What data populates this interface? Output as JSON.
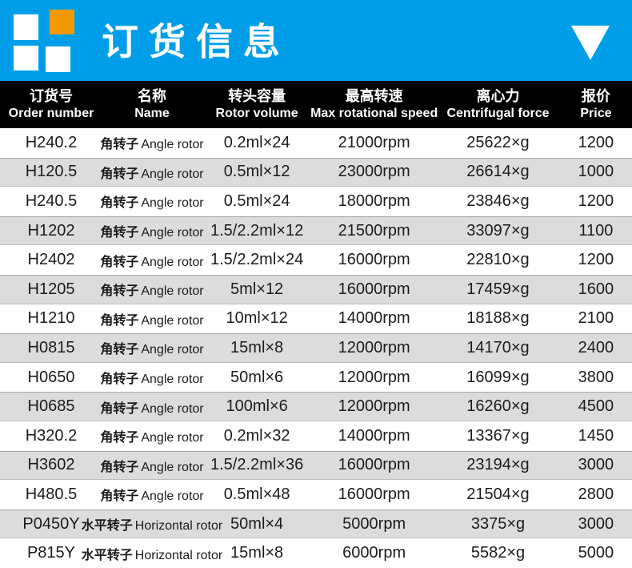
{
  "banner": {
    "title": "订货信息",
    "bg_color": "#009EE8",
    "logo": {
      "white_color": "#FFFFFF",
      "orange_color": "#F39800"
    },
    "collapse_icon": "triangle-down"
  },
  "table": {
    "header": {
      "bg_color": "#000000",
      "text_color": "#FFFFFF",
      "columns": [
        {
          "zh": "订货号",
          "en": "Order number"
        },
        {
          "zh": "名称",
          "en": "Name"
        },
        {
          "zh": "转头容量",
          "en": "Rotor volume"
        },
        {
          "zh": "最高转速",
          "en": "Max rotational speed"
        },
        {
          "zh": "离心力",
          "en": "Centrifugal force"
        },
        {
          "zh": "报价",
          "en": "Price"
        }
      ]
    },
    "stripe_color": "#DCDCDC",
    "text_color": "#1C1C1C",
    "rows": [
      {
        "order": "H240.2",
        "name_zh": "角转子",
        "name_en": "Angle rotor",
        "volume": "0.2ml×24",
        "speed": "21000rpm",
        "force": "25622×g",
        "price": "1200"
      },
      {
        "order": "H120.5",
        "name_zh": "角转子",
        "name_en": "Angle rotor",
        "volume": "0.5ml×12",
        "speed": "23000rpm",
        "force": "26614×g",
        "price": "1000"
      },
      {
        "order": "H240.5",
        "name_zh": "角转子",
        "name_en": "Angle rotor",
        "volume": "0.5ml×24",
        "speed": "18000rpm",
        "force": "23846×g",
        "price": "1200"
      },
      {
        "order": "H1202",
        "name_zh": "角转子",
        "name_en": "Angle rotor",
        "volume": "1.5/2.2ml×12",
        "speed": "21500rpm",
        "force": "33097×g",
        "price": "1100"
      },
      {
        "order": "H2402",
        "name_zh": "角转子",
        "name_en": "Angle rotor",
        "volume": "1.5/2.2ml×24",
        "speed": "16000rpm",
        "force": "22810×g",
        "price": "1200"
      },
      {
        "order": "H1205",
        "name_zh": "角转子",
        "name_en": "Angle rotor",
        "volume": "5ml×12",
        "speed": "16000rpm",
        "force": "17459×g",
        "price": "1600"
      },
      {
        "order": "H1210",
        "name_zh": "角转子",
        "name_en": "Angle rotor",
        "volume": "10ml×12",
        "speed": "14000rpm",
        "force": "18188×g",
        "price": "2100"
      },
      {
        "order": "H0815",
        "name_zh": "角转子",
        "name_en": "Angle rotor",
        "volume": "15ml×8",
        "speed": "12000rpm",
        "force": "14170×g",
        "price": "2400"
      },
      {
        "order": "H0650",
        "name_zh": "角转子",
        "name_en": "Angle rotor",
        "volume": "50ml×6",
        "speed": "12000rpm",
        "force": "16099×g",
        "price": "3800"
      },
      {
        "order": "H0685",
        "name_zh": "角转子",
        "name_en": "Angle rotor",
        "volume": "100ml×6",
        "speed": "12000rpm",
        "force": "16260×g",
        "price": "4500"
      },
      {
        "order": "H320.2",
        "name_zh": "角转子",
        "name_en": "Angle rotor",
        "volume": "0.2ml×32",
        "speed": "14000rpm",
        "force": "13367×g",
        "price": "1450"
      },
      {
        "order": "H3602",
        "name_zh": "角转子",
        "name_en": "Angle rotor",
        "volume": "1.5/2.2ml×36",
        "speed": "16000rpm",
        "force": "23194×g",
        "price": "3000"
      },
      {
        "order": "H480.5",
        "name_zh": "角转子",
        "name_en": "Angle rotor",
        "volume": "0.5ml×48",
        "speed": "16000rpm",
        "force": "21504×g",
        "price": "2800"
      },
      {
        "order": "P0450Y",
        "name_zh": "水平转子",
        "name_en": "Horizontal rotor",
        "volume": "50ml×4",
        "speed": "5000rpm",
        "force": "3375×g",
        "price": "3000"
      },
      {
        "order": "P815Y",
        "name_zh": "水平转子",
        "name_en": "Horizontal rotor",
        "volume": "15ml×8",
        "speed": "6000rpm",
        "force": "5582×g",
        "price": "5000"
      }
    ]
  }
}
